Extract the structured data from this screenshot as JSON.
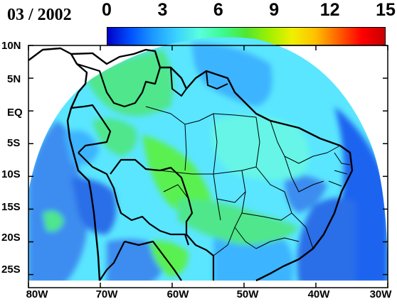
{
  "title": "03 / 2002",
  "colorbar": {
    "ticks": [
      "0",
      "3",
      "6",
      "9",
      "12",
      "15"
    ],
    "tick_values": [
      0,
      3,
      6,
      9,
      12,
      15
    ],
    "range": [
      0,
      15
    ],
    "colors": [
      "#0000c8",
      "#0050ff",
      "#1e9bff",
      "#3cd2ff",
      "#5affdc",
      "#3cfa8c",
      "#50e632",
      "#a0f000",
      "#f0f000",
      "#ffc000",
      "#ff6000",
      "#ff0000",
      "#c80000"
    ]
  },
  "map": {
    "region": "South America",
    "lon_range": [
      -80,
      -30
    ],
    "lat_range": [
      -27,
      10
    ],
    "y_ticks": [
      "10N",
      "5N",
      "EQ",
      "5S",
      "10S",
      "15S",
      "20S",
      "25S"
    ],
    "y_tick_values": [
      10,
      5,
      0,
      -5,
      -10,
      -15,
      -20,
      -25
    ],
    "x_ticks": [
      "80W",
      "70W",
      "60W",
      "50W",
      "40W",
      "30W"
    ],
    "x_tick_values": [
      -80,
      -70,
      -60,
      -50,
      -40,
      -30
    ],
    "colors": {
      "ocean_far": "#1e64f0",
      "deep_blue": "#2c6ee8",
      "blue": "#3c8cf0",
      "cyan_blue": "#3cb4ff",
      "cyan": "#5ae6ff",
      "aqua": "#66f5e6",
      "green": "#50e68c",
      "bright_green": "#5af050",
      "land_bg": "#ffffff",
      "border": "#000000"
    }
  }
}
